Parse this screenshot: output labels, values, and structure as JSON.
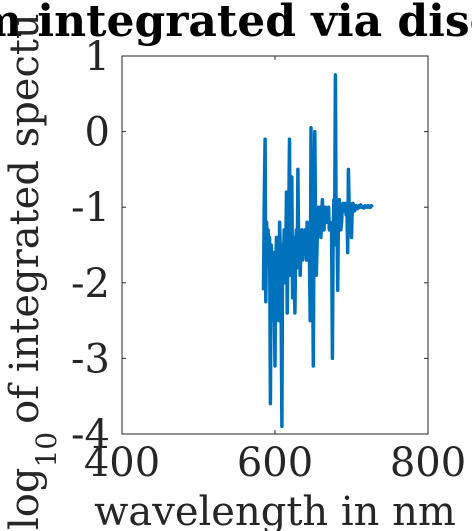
{
  "chart_data": {
    "type": "line",
    "title": "m integrated via disc",
    "xlabel": "wavelength in nm",
    "ylabel": {
      "prefix": "log",
      "subscript": "10",
      "rest": "of integrated spectu"
    },
    "xlim": [
      400,
      800
    ],
    "ylim": [
      -4,
      1
    ],
    "x_ticks": [
      400,
      600,
      800
    ],
    "y_ticks": [
      1,
      0,
      -1,
      -2,
      -3,
      -4
    ],
    "x_tick_labels": [
      "400",
      "600",
      "800"
    ],
    "y_tick_labels": [
      "1",
      "0",
      "-1",
      "-2",
      "-3",
      "-4"
    ],
    "grid": false,
    "line_color": "#0072BD",
    "series": [
      {
        "x": [
          585,
          586,
          587,
          588,
          589,
          590,
          591,
          592,
          593,
          594,
          595,
          596,
          597,
          598,
          599,
          600,
          601,
          602,
          603,
          604,
          605,
          606,
          607,
          608,
          609,
          610,
          611,
          612,
          613,
          614,
          615,
          616,
          617,
          618,
          619,
          620,
          621,
          622,
          623,
          624,
          625,
          626,
          627,
          628,
          629,
          630,
          631,
          632,
          633,
          634,
          635,
          636,
          637,
          638,
          639,
          640,
          641,
          642,
          643,
          644,
          645,
          646,
          647,
          648,
          649,
          650,
          651,
          652,
          653,
          654,
          655,
          656,
          657,
          658,
          659,
          660,
          661,
          662,
          663,
          664,
          665,
          666,
          667,
          668,
          669,
          670,
          671,
          672,
          673,
          674,
          675,
          676,
          677,
          678,
          679,
          680,
          681,
          682,
          683,
          684,
          685,
          686,
          687,
          688,
          689,
          690,
          691,
          692,
          693,
          694,
          695,
          696,
          697,
          698,
          699,
          700,
          701,
          702,
          703,
          704,
          705,
          706,
          707,
          708,
          709,
          710,
          711,
          712,
          713,
          714,
          715,
          716,
          717,
          718,
          719,
          720,
          721,
          722,
          723,
          724,
          725,
          726,
          727
        ],
        "y": [
          -2.1,
          -0.85,
          -0.1,
          -2.25,
          -1.2,
          -1.6,
          -1.3,
          -1.75,
          -1.4,
          -3.6,
          -1.5,
          -2.5,
          -1.9,
          -1.6,
          -2.2,
          -3.1,
          -1.7,
          -1.4,
          -2.1,
          -1.8,
          -2.5,
          -1.2,
          -1.6,
          -2.3,
          -3.9,
          -1.5,
          -1.8,
          -1.3,
          -2.0,
          -1.6,
          -0.8,
          -2.4,
          -1.5,
          -1.1,
          -0.1,
          -1.9,
          -1.6,
          -0.6,
          -2.2,
          -1.4,
          -1.7,
          -2.4,
          -1.5,
          -1.3,
          -1.8,
          -0.5,
          -1.6,
          -1.4,
          -1.9,
          -1.5,
          -1.3,
          -1.7,
          -1.4,
          -1.6,
          -1.3,
          -1.5,
          -1.7,
          -1.2,
          -1.4,
          -1.3,
          -1.6,
          -2.5,
          0.05,
          -1.7,
          -1.4,
          -3.1,
          -1.2,
          0.0,
          -1.1,
          -1.9,
          -1.5,
          -1.0,
          -1.3,
          -1.2,
          -1.0,
          -1.4,
          -1.1,
          -0.9,
          -1.2,
          -1.3,
          -1.1,
          -1.0,
          -1.15,
          -1.2,
          -1.1,
          -1.0,
          -1.3,
          -1.2,
          -1.25,
          -1.3,
          -3.0,
          -1.4,
          -0.9,
          -1.1,
          0.75,
          -1.5,
          -1.2,
          -2.1,
          -1.0,
          -0.9,
          -1.1,
          -1.3,
          -1.2,
          -1.0,
          -0.95,
          -1.05,
          -1.0,
          -0.95,
          -1.1,
          -1.0,
          -1.6,
          -0.5,
          -1.0,
          -0.95,
          -1.0,
          -1.4,
          -1.0,
          -0.95,
          -1.0,
          -1.05,
          -1.0,
          -0.98,
          -1.0,
          -1.02,
          -1.0,
          -0.98,
          -1.0,
          -0.97,
          -1.0,
          -0.99,
          -1.0,
          -1.01,
          -1.0,
          -0.98,
          -1.0,
          -0.99,
          -1.0,
          -0.98,
          -1.0,
          -0.99,
          -1.0,
          -0.98,
          -1.0
        ]
      }
    ]
  }
}
